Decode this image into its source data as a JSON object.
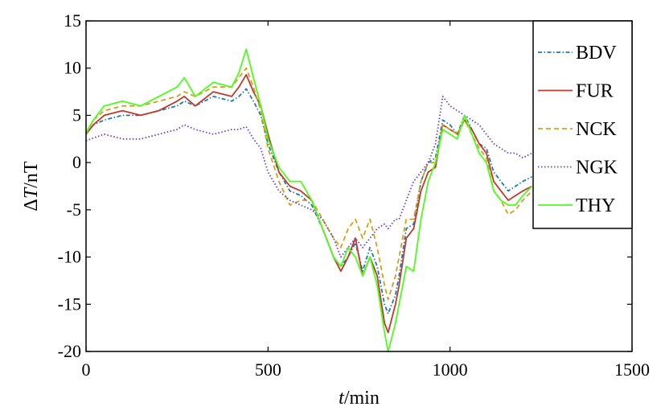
{
  "chart_data": {
    "type": "line",
    "xlabel_italic": "t",
    "xlabel_rest": "/min",
    "ylabel_prefix": "Δ",
    "ylabel_italic": "T",
    "ylabel_rest": "/nT",
    "xlim": [
      0,
      1500
    ],
    "ylim": [
      -20,
      15
    ],
    "xticks": [
      0,
      500,
      1000,
      1500
    ],
    "yticks": [
      -20,
      -15,
      -10,
      -5,
      0,
      5,
      10,
      15
    ],
    "grid": false,
    "legend_position": "top-right",
    "series": [
      {
        "name": "BDV",
        "color": "#1f77b4",
        "dash": "dashdot",
        "x": [
          0,
          20,
          50,
          100,
          150,
          200,
          250,
          270,
          300,
          350,
          400,
          420,
          440,
          460,
          480,
          500,
          530,
          560,
          590,
          620,
          650,
          680,
          700,
          720,
          740,
          760,
          780,
          800,
          820,
          830,
          850,
          860,
          880,
          900,
          920,
          940,
          960,
          980,
          1000,
          1020,
          1040,
          1060,
          1080,
          1100,
          1120,
          1140,
          1160,
          1180,
          1200,
          1225
        ],
        "y": [
          3,
          4,
          4.5,
          5,
          5,
          5.5,
          6,
          6.5,
          6,
          7,
          6.5,
          7,
          7.8,
          6.5,
          5,
          2,
          -1,
          -3,
          -3.5,
          -4.5,
          -7,
          -10,
          -11,
          -10,
          -8.5,
          -11.5,
          -9,
          -11,
          -15,
          -16,
          -14,
          -12,
          -7,
          -6.5,
          -2,
          0,
          0.5,
          4.5,
          4,
          3,
          5,
          3.5,
          2,
          1.5,
          -1,
          -2,
          -3,
          -2.5,
          -2,
          -1.5
        ]
      },
      {
        "name": "FUR",
        "color": "#c0392b",
        "dash": "solid",
        "x": [
          0,
          20,
          50,
          100,
          150,
          200,
          250,
          270,
          300,
          350,
          400,
          420,
          440,
          460,
          480,
          500,
          530,
          560,
          590,
          620,
          650,
          680,
          700,
          720,
          740,
          760,
          780,
          800,
          820,
          830,
          850,
          860,
          880,
          900,
          920,
          940,
          960,
          980,
          1000,
          1020,
          1040,
          1060,
          1080,
          1100,
          1120,
          1140,
          1160,
          1180,
          1200,
          1225
        ],
        "y": [
          3,
          4,
          5,
          5.5,
          5,
          5.5,
          6.5,
          7,
          6,
          7.5,
          7,
          8,
          9.3,
          7.5,
          6,
          3,
          -1,
          -2.5,
          -3,
          -4,
          -7,
          -10,
          -11.5,
          -10,
          -8,
          -12,
          -10,
          -12,
          -17,
          -18,
          -15,
          -13,
          -8,
          -7,
          -3,
          -1,
          -0.5,
          4,
          3.5,
          3,
          4.5,
          3.5,
          2,
          1,
          -2,
          -3,
          -4,
          -3.5,
          -3,
          -2.5
        ]
      },
      {
        "name": "NCK",
        "color": "#d4a017",
        "dash": "dashed",
        "x": [
          0,
          20,
          50,
          100,
          150,
          200,
          250,
          270,
          300,
          350,
          400,
          420,
          440,
          460,
          480,
          500,
          530,
          560,
          590,
          620,
          650,
          680,
          700,
          720,
          740,
          760,
          780,
          800,
          820,
          830,
          850,
          860,
          880,
          900,
          920,
          940,
          960,
          980,
          1000,
          1020,
          1040,
          1060,
          1080,
          1100,
          1120,
          1140,
          1160,
          1180,
          1200,
          1225
        ],
        "y": [
          3,
          4.5,
          5.5,
          6,
          6,
          6.5,
          7,
          7.5,
          7,
          8,
          8,
          9,
          10,
          8,
          5.5,
          1.5,
          -2,
          -4.5,
          -4,
          -4,
          -6,
          -8,
          -9,
          -7,
          -6,
          -8,
          -6,
          -9,
          -13,
          -14.5,
          -12,
          -10,
          -6,
          -6,
          -2,
          0,
          0,
          4,
          3.5,
          3,
          4.5,
          3,
          1.5,
          0.5,
          -3,
          -4,
          -5.5,
          -5,
          -4,
          -3
        ]
      },
      {
        "name": "NGK",
        "color": "#6a3fc9",
        "dash": "dotted",
        "x": [
          0,
          20,
          50,
          100,
          150,
          200,
          250,
          270,
          300,
          350,
          400,
          420,
          440,
          460,
          480,
          500,
          530,
          560,
          590,
          620,
          650,
          680,
          700,
          720,
          740,
          760,
          780,
          800,
          820,
          830,
          850,
          860,
          880,
          900,
          920,
          940,
          960,
          980,
          1000,
          1020,
          1040,
          1060,
          1080,
          1100,
          1120,
          1140,
          1160,
          1180,
          1200,
          1225
        ],
        "y": [
          2.3,
          2.6,
          3,
          2.5,
          2.5,
          3,
          3.5,
          4,
          3.5,
          3,
          3.5,
          3.5,
          3.8,
          2.5,
          1.5,
          -1,
          -3,
          -4,
          -4.5,
          -5,
          -6,
          -8,
          -10,
          -9,
          -8,
          -9,
          -8,
          -7,
          -6.5,
          -7,
          -6,
          -6,
          -4,
          -2,
          -1,
          0,
          2,
          7,
          6,
          5.5,
          5,
          4.5,
          4,
          3,
          2,
          1.5,
          1,
          1,
          0.5,
          1
        ]
      },
      {
        "name": "THY",
        "color": "#4cff1a",
        "dash": "solid",
        "x": [
          0,
          20,
          50,
          100,
          150,
          200,
          250,
          270,
          300,
          350,
          400,
          420,
          440,
          460,
          480,
          500,
          530,
          560,
          590,
          620,
          650,
          680,
          700,
          720,
          740,
          760,
          780,
          800,
          820,
          830,
          850,
          860,
          880,
          900,
          920,
          940,
          960,
          980,
          1000,
          1020,
          1040,
          1060,
          1080,
          1100,
          1120,
          1140,
          1160,
          1180,
          1200,
          1225
        ],
        "y": [
          3.2,
          4.5,
          6,
          6.5,
          6,
          7,
          8,
          9,
          7,
          8.5,
          8,
          9.5,
          12,
          9,
          6,
          2.5,
          -0.5,
          -2,
          -2,
          -4,
          -7,
          -10,
          -11,
          -9,
          -10,
          -12,
          -10,
          -13,
          -18,
          -20,
          -17,
          -15,
          -11,
          -11.5,
          -6,
          -2,
          0,
          3.5,
          3,
          2.5,
          5,
          3,
          1,
          0,
          -3,
          -4,
          -4.5,
          -4.5,
          -3.5,
          -2.5
        ]
      }
    ]
  }
}
